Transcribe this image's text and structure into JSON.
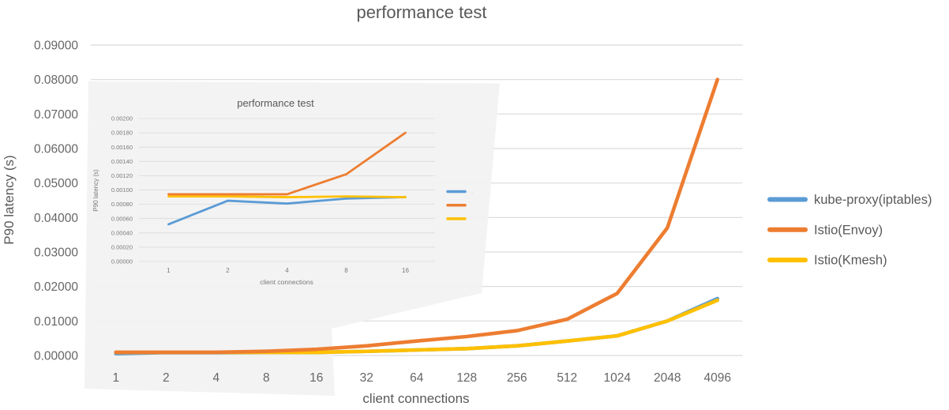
{
  "colors": {
    "series_blue": "#5B9BD5",
    "series_orange": "#ED7D31",
    "series_yellow": "#FFC000",
    "gridline": "#D9D9D9",
    "title_text": "#595959",
    "tick_text": "#666666",
    "inset_text": "#7A7A7A",
    "overlay_bg": "#F2F2F2"
  },
  "legend": {
    "position": "right",
    "items": [
      {
        "label": "kube-proxy(iptables)",
        "color_key": "series_blue"
      },
      {
        "label": "Istio(Envoy)",
        "color_key": "series_orange"
      },
      {
        "label": "Istio(Kmesh)",
        "color_key": "series_yellow"
      }
    ]
  },
  "chart_data": [
    {
      "id": "main",
      "type": "line",
      "title": "performance test",
      "xlabel": "client connections",
      "ylabel": "P90 latency (s)",
      "ylim": [
        0,
        0.09
      ],
      "y_step": 0.01,
      "grid": true,
      "legend_position": "right",
      "categories": [
        "1",
        "2",
        "4",
        "8",
        "16",
        "32",
        "64",
        "128",
        "256",
        "512",
        "1024",
        "2048",
        "4096"
      ],
      "y_tick_labels": [
        "0.00000",
        "0.01000",
        "0.02000",
        "0.03000",
        "0.04000",
        "0.05000",
        "0.06000",
        "0.07000",
        "0.08000",
        "0.09000"
      ],
      "series": [
        {
          "name": "kube-proxy(iptables)",
          "color_key": "series_blue",
          "values": [
            0.00052,
            0.00085,
            0.00081,
            0.00088,
            0.0009,
            0.0012,
            0.0016,
            0.002,
            0.0028,
            0.0042,
            0.0057,
            0.01,
            0.0165
          ]
        },
        {
          "name": "Istio(Kmesh)",
          "color_key": "series_yellow",
          "values": [
            0.00091,
            0.00091,
            0.0009,
            0.00091,
            0.0009,
            0.0012,
            0.0016,
            0.002,
            0.0028,
            0.0042,
            0.0057,
            0.01,
            0.016
          ]
        },
        {
          "name": "Istio(Envoy)",
          "color_key": "series_orange",
          "values": [
            0.00094,
            0.00094,
            0.00094,
            0.00122,
            0.0018,
            0.0028,
            0.0042,
            0.0055,
            0.0072,
            0.0105,
            0.018,
            0.037,
            0.08
          ]
        }
      ]
    },
    {
      "id": "inset",
      "type": "line",
      "title": "performance test",
      "xlabel": "client connections",
      "ylabel": "P90 latency (s)",
      "ylim": [
        0,
        0.002
      ],
      "y_step": 0.0002,
      "grid": true,
      "note_zoom_of": "connections 1-16",
      "categories": [
        "1",
        "2",
        "4",
        "8",
        "16"
      ],
      "y_tick_labels": [
        "0.00000",
        "0.00020",
        "0.00040",
        "0.00060",
        "0.00080",
        "0.00100",
        "0.00120",
        "0.00140",
        "0.00160",
        "0.00180",
        "0.00200"
      ],
      "legend_labels_visible": false,
      "legend_truncation_marks": "··",
      "series": [
        {
          "name": "kube-proxy(iptables)",
          "color_key": "series_blue",
          "values": [
            0.00052,
            0.00085,
            0.00081,
            0.00088,
            0.0009
          ]
        },
        {
          "name": "Istio(Kmesh)",
          "color_key": "series_yellow",
          "values": [
            0.00091,
            0.00091,
            0.0009,
            0.00091,
            0.0009
          ]
        },
        {
          "name": "Istio(Envoy)",
          "color_key": "series_orange",
          "values": [
            0.00094,
            0.00094,
            0.00094,
            0.00122,
            0.0018
          ]
        }
      ]
    }
  ]
}
